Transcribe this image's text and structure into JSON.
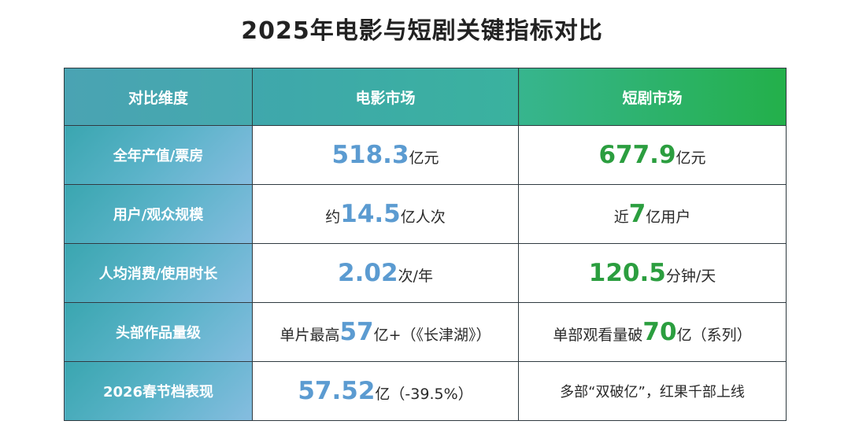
{
  "title": "2025年电影与短剧关键指标对比",
  "colors": {
    "film_number": "#5b9bd1",
    "short_number": "#2b9e3f",
    "header_start": "#4aa3b3",
    "header_end": "#23b04a"
  },
  "table": {
    "headers": [
      "对比维度",
      "电影市场",
      "短剧市场"
    ],
    "rows": [
      {
        "dimension": "全年产值/票房",
        "film": {
          "prefix": "",
          "number": "518.3",
          "suffix": "亿元"
        },
        "short": {
          "prefix": "",
          "number": "677.9",
          "suffix": "亿元"
        }
      },
      {
        "dimension": "用户/观众规模",
        "film": {
          "prefix": "约",
          "number": "14.5",
          "suffix": "亿人次"
        },
        "short": {
          "prefix": "近",
          "number": "7",
          "suffix": "亿用户"
        }
      },
      {
        "dimension": "人均消费/使用时长",
        "film": {
          "prefix": "",
          "number": "2.02",
          "suffix": "次/年"
        },
        "short": {
          "prefix": "",
          "number": "120.5",
          "suffix": "分钟/天"
        }
      },
      {
        "dimension": "头部作品量级",
        "film": {
          "prefix": "单片最高",
          "number": "57",
          "suffix": "亿+（《长津湖》）"
        },
        "short": {
          "prefix": "单部观看量破",
          "number": "70",
          "suffix": "亿（系列）"
        }
      },
      {
        "dimension": "2026春节档表现",
        "film": {
          "prefix": "",
          "number": "57.52",
          "suffix": "亿（-39.5%）"
        },
        "short": {
          "text": "多部“双破亿”，红果千部上线"
        }
      }
    ]
  }
}
